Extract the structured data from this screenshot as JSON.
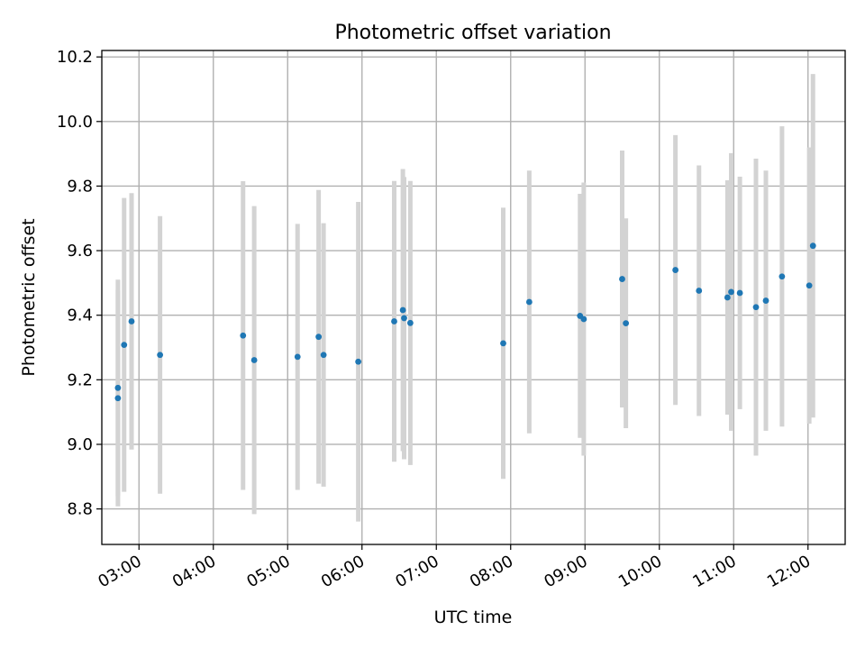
{
  "chart_data": {
    "type": "scatter",
    "title": "Photometric offset variation",
    "xlabel": "UTC time",
    "ylabel": "Photometric offset",
    "xlim": [
      "02:30",
      "12:30"
    ],
    "ylim": [
      8.69,
      10.22
    ],
    "grid": true,
    "x_ticks": [
      "03:00",
      "04:00",
      "05:00",
      "06:00",
      "07:00",
      "08:00",
      "09:00",
      "10:00",
      "11:00",
      "12:00"
    ],
    "y_ticks": [
      8.8,
      9.0,
      9.2,
      9.4,
      9.6,
      9.8,
      10.0,
      10.2
    ],
    "y_tick_labels": [
      "8.8",
      "9.0",
      "9.2",
      "9.4",
      "9.6",
      "9.8",
      "10.0",
      "10.2"
    ],
    "colors": {
      "points": "#1f77b4",
      "error_bars": "#d3d3d3",
      "grid": "#b0b0b0"
    },
    "series": [
      {
        "points": [
          {
            "x": "02:43",
            "y": 9.175,
            "err": 0.335
          },
          {
            "x": "02:43",
            "y": 9.143,
            "err": 0.335
          },
          {
            "x": "02:48",
            "y": 9.308,
            "err": 0.455
          },
          {
            "x": "02:54",
            "y": 9.381,
            "err": 0.397
          },
          {
            "x": "03:17",
            "y": 9.277,
            "err": 0.43
          },
          {
            "x": "04:24",
            "y": 9.337,
            "err": 0.478
          },
          {
            "x": "04:33",
            "y": 9.261,
            "err": 0.477
          },
          {
            "x": "05:08",
            "y": 9.271,
            "err": 0.412
          },
          {
            "x": "05:25",
            "y": 9.333,
            "err": 0.455
          },
          {
            "x": "05:29",
            "y": 9.277,
            "err": 0.408
          },
          {
            "x": "05:57",
            "y": 9.256,
            "err": 0.495
          },
          {
            "x": "06:26",
            "y": 9.381,
            "err": 0.435
          },
          {
            "x": "06:33",
            "y": 9.416,
            "err": 0.437
          },
          {
            "x": "06:34",
            "y": 9.391,
            "err": 0.437
          },
          {
            "x": "06:39",
            "y": 9.376,
            "err": 0.44
          },
          {
            "x": "07:54",
            "y": 9.313,
            "err": 0.42
          },
          {
            "x": "08:15",
            "y": 9.441,
            "err": 0.407
          },
          {
            "x": "08:56",
            "y": 9.398,
            "err": 0.378
          },
          {
            "x": "08:59",
            "y": 9.388,
            "err": 0.423
          },
          {
            "x": "09:30",
            "y": 9.512,
            "err": 0.398
          },
          {
            "x": "09:33",
            "y": 9.375,
            "err": 0.325
          },
          {
            "x": "10:13",
            "y": 9.54,
            "err": 0.418
          },
          {
            "x": "10:32",
            "y": 9.476,
            "err": 0.388
          },
          {
            "x": "10:55",
            "y": 9.455,
            "err": 0.363
          },
          {
            "x": "10:58",
            "y": 9.472,
            "err": 0.43
          },
          {
            "x": "11:05",
            "y": 9.469,
            "err": 0.36
          },
          {
            "x": "11:18",
            "y": 9.425,
            "err": 0.46
          },
          {
            "x": "11:26",
            "y": 9.445,
            "err": 0.403
          },
          {
            "x": "11:39",
            "y": 9.52,
            "err": 0.465
          },
          {
            "x": "12:01",
            "y": 9.492,
            "err": 0.428
          },
          {
            "x": "12:04",
            "y": 9.615,
            "err": 0.532
          }
        ]
      }
    ]
  }
}
